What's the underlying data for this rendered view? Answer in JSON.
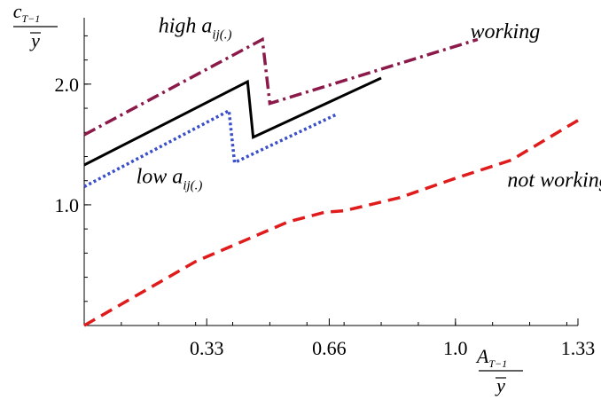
{
  "chart_data": {
    "type": "line",
    "xlabel": {
      "num_main": "A",
      "num_sub": "T−1",
      "den": "y"
    },
    "ylabel": {
      "num_main": "c",
      "num_sub": "T−1",
      "den": "y"
    },
    "xlim": [
      0,
      1.33
    ],
    "ylim": [
      0,
      2.55
    ],
    "x_ticks": [
      {
        "value": 0.33,
        "label": "0.33"
      },
      {
        "value": 0.66,
        "label": "0.66"
      },
      {
        "value": 1.0,
        "label": "1.0"
      },
      {
        "value": 1.33,
        "label": "1.33"
      }
    ],
    "y_ticks": [
      {
        "value": 1.0,
        "label": "1.0"
      },
      {
        "value": 2.0,
        "label": "2.0"
      }
    ],
    "grid": false,
    "annotations": [
      {
        "main": "high a",
        "sub": "ij(.)",
        "x": 0.2,
        "y": 2.43
      },
      {
        "main": "working",
        "x": 1.04,
        "y": 2.38
      },
      {
        "main": "low a",
        "sub": "ij(.)",
        "x": 0.14,
        "y": 1.18
      },
      {
        "main": "not working",
        "x": 1.14,
        "y": 1.15
      }
    ],
    "series": [
      {
        "color": "#8b1a4a",
        "dash": "14,5,3,5",
        "width": 3.5,
        "points": [
          [
            0,
            1.58
          ],
          [
            0.48,
            2.37
          ],
          [
            0.5,
            1.84
          ],
          [
            1.06,
            2.37
          ]
        ]
      },
      {
        "color": "#000000",
        "dash": "",
        "width": 3,
        "points": [
          [
            0,
            1.33
          ],
          [
            0.44,
            2.02
          ],
          [
            0.455,
            1.56
          ],
          [
            0.8,
            2.05
          ]
        ]
      },
      {
        "color": "#3a4fc9",
        "dash": "3,3",
        "width": 3.5,
        "points": [
          [
            0,
            1.15
          ],
          [
            0.39,
            1.78
          ],
          [
            0.405,
            1.35
          ],
          [
            0.68,
            1.75
          ]
        ]
      },
      {
        "color": "#e01b1b",
        "dash": "14,8",
        "width": 3.5,
        "points": [
          [
            0,
            0
          ],
          [
            0.3,
            0.53
          ],
          [
            0.55,
            0.86
          ],
          [
            0.65,
            0.94
          ],
          [
            0.7,
            0.95
          ],
          [
            0.85,
            1.06
          ],
          [
            1.0,
            1.22
          ],
          [
            1.15,
            1.37
          ],
          [
            1.33,
            1.7
          ]
        ]
      }
    ]
  }
}
